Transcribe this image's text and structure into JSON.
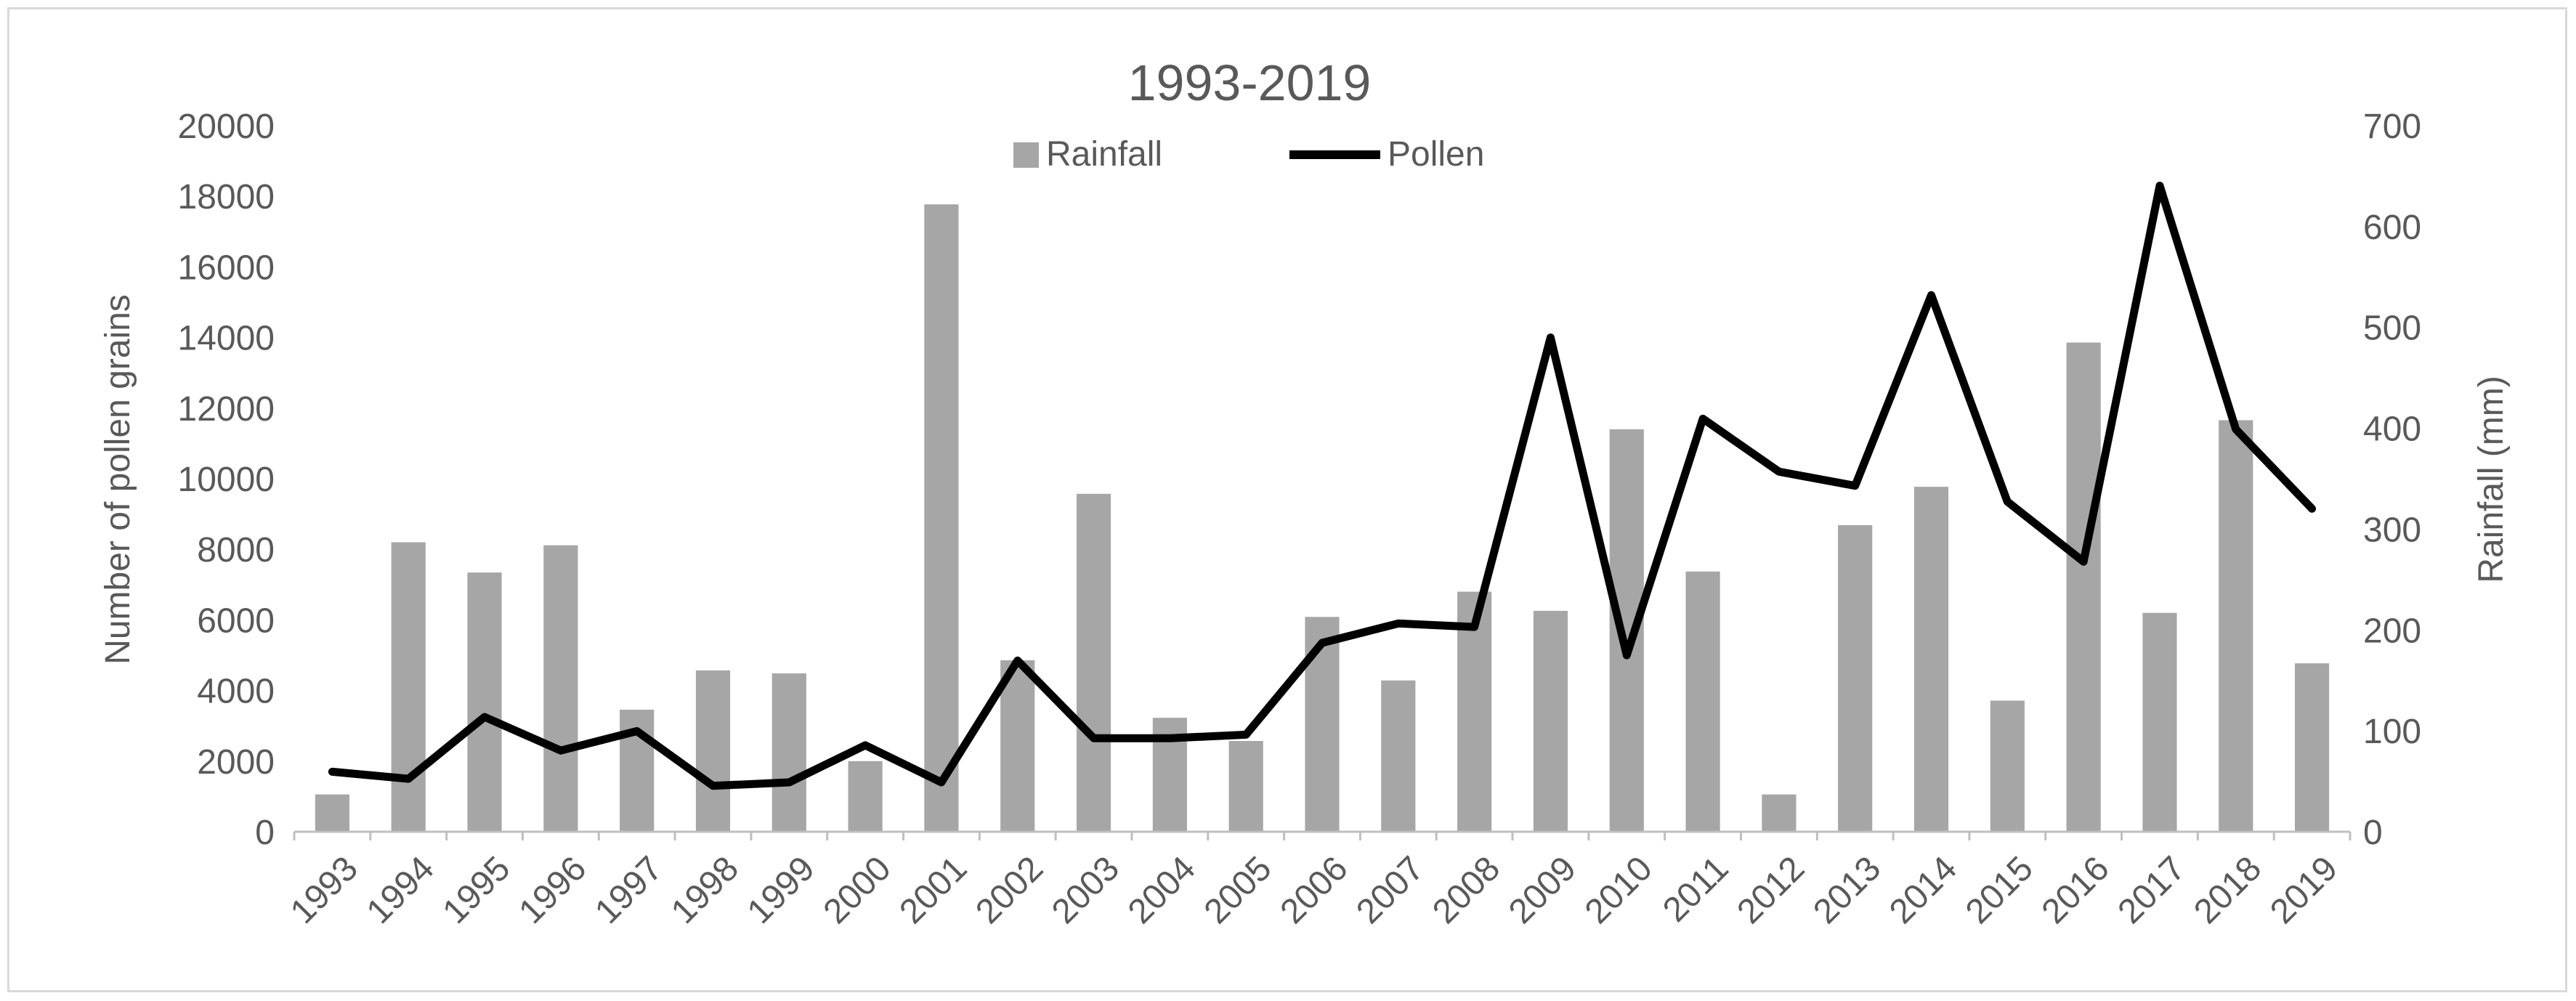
{
  "chart_data": {
    "type": "bar+line",
    "title": "1993-2019",
    "categories": [
      "1993",
      "1994",
      "1995",
      "1996",
      "1997",
      "1998",
      "1999",
      "2000",
      "2001",
      "2002",
      "2003",
      "2004",
      "2005",
      "2006",
      "2007",
      "2008",
      "2009",
      "2010",
      "2011",
      "2012",
      "2013",
      "2014",
      "2015",
      "2016",
      "2017",
      "2018",
      "2019"
    ],
    "y_left": {
      "label": "Number of pollen grains",
      "range": [
        0,
        20000
      ],
      "ticks": [
        "0",
        "2000",
        "4000",
        "6000",
        "8000",
        "10000",
        "12000",
        "14000",
        "16000",
        "18000",
        "20000"
      ]
    },
    "y_right": {
      "label": "Rainfall (mm)",
      "range": [
        0,
        700
      ],
      "ticks": [
        "0",
        "100",
        "200",
        "300",
        "400",
        "500",
        "600",
        "700"
      ]
    },
    "legend": {
      "position": "top-center"
    },
    "grid": false,
    "series": [
      {
        "name": "Rainfall",
        "type": "bar",
        "axis": "right",
        "color": "#a6a6a6",
        "values": [
          37,
          287,
          257,
          284,
          121,
          160,
          157,
          70,
          622,
          170,
          335,
          113,
          90,
          213,
          150,
          238,
          219,
          399,
          258,
          37,
          304,
          342,
          130,
          485,
          217,
          408,
          167
        ]
      },
      {
        "name": "Pollen",
        "type": "line",
        "axis": "left",
        "color": "#000000",
        "values": [
          1700,
          1500,
          3250,
          2300,
          2850,
          1300,
          1400,
          2450,
          1400,
          4850,
          2650,
          2650,
          2750,
          5350,
          5900,
          5800,
          14000,
          5000,
          11700,
          10200,
          9800,
          15200,
          9350,
          7650,
          18300,
          11400,
          9150
        ]
      }
    ]
  }
}
